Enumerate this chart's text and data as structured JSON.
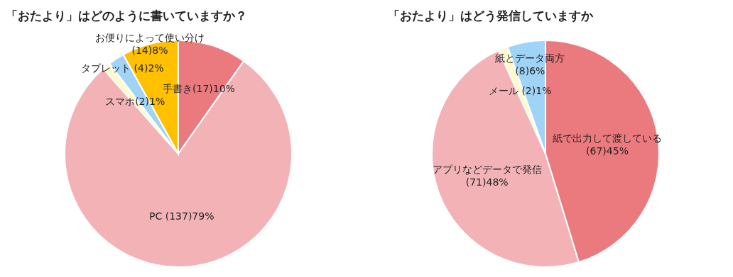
{
  "chart_data": [
    {
      "type": "pie",
      "title": "「おたより」はどのように書いていますか？",
      "categories": [
        "手書き",
        "PC",
        "スマホ",
        "タブレット",
        "お便りによって使い分け"
      ],
      "values": [
        17,
        137,
        2,
        4,
        14
      ],
      "value_labels": [
        "(17)10%",
        " (137)79%",
        "(2)1%",
        " (4)2%",
        "(14)8%"
      ],
      "colors": [
        "#eb7a7f",
        "#f3b3b6",
        "#fffacd",
        "#9fd4f7",
        "#ffc000"
      ]
    },
    {
      "type": "pie",
      "title": "「おたより」はどう発信していますか",
      "categories": [
        "紙で出力して渡している",
        "アプリなどデータで発信",
        "メール",
        "紙とデータ両方"
      ],
      "values": [
        67,
        71,
        2,
        8
      ],
      "value_labels": [
        "(67)45%",
        "(71)48%",
        " (2)1%",
        "(8)6%"
      ],
      "colors": [
        "#eb7a7f",
        "#f3b3b6",
        "#fffacd",
        "#9fd4f7"
      ]
    }
  ]
}
